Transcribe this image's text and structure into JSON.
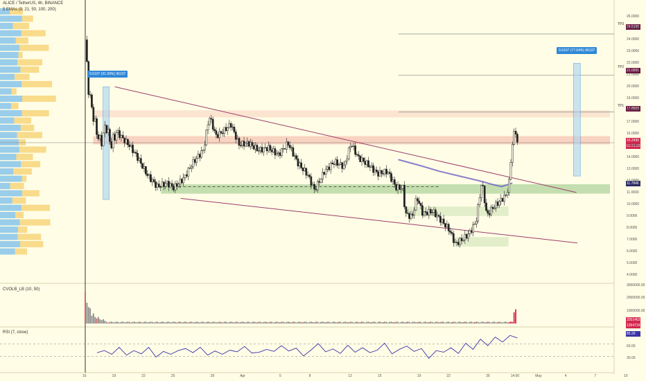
{
  "header": {
    "symbol": "ALICE / TetherUS, 4h, BINANCE",
    "emas": "5 EMAs (9, 21, 50, 100, 200)",
    "cvol": "CVOLB_LB (10, 50)",
    "rsi": "RSI (7, close)"
  },
  "colors": {
    "background": "#fffde6",
    "candle": "#222222",
    "trendline": "#9c3c6a",
    "ema": "#6b5fc4",
    "rsi": "#3c33a8",
    "resistance_zone": "#f4b8a8",
    "support_zone": "#9cc98a",
    "measure": "#2f88d8",
    "price_tag": "#d3274f"
  },
  "measures": [
    {
      "label": "9.6107 (91.99%) 96107",
      "from": 10.4,
      "to": 20.0
    },
    {
      "label": "9.6107 (77.64%) 96107",
      "from": 12.4,
      "to": 22.0
    }
  ],
  "tp_levels": [
    {
      "name": "TP3",
      "price_label": "24.5190"
    },
    {
      "name": "TP2",
      "price_label": "21.0201"
    },
    {
      "name": "TP1",
      "price_label": "17.8509"
    }
  ],
  "price_tags": [
    {
      "label": "15.2430",
      "sub": "02:20:20",
      "color": "#d3274f"
    },
    {
      "label": "11.7846",
      "color": "#2d2d66"
    }
  ],
  "cvol_tags": [
    "2051463.00",
    "1354719.00"
  ],
  "rsi_tag": "85.29",
  "chart_data": [
    {
      "type": "candlestick",
      "title": "ALICE / TetherUS, 4h, BINANCE",
      "ylim": [
        3.5,
        26.8
      ],
      "y_ticks": [
        "4.0000",
        "5.0000",
        "6.0000",
        "7.0000",
        "8.0000",
        "9.0000",
        "10.0000",
        "11.0000",
        "12.0000",
        "13.0000",
        "14.0000",
        "15.0000",
        "16.0000",
        "17.0000",
        "18.0000",
        "19.0000",
        "20.0000",
        "21.0000",
        "22.0000",
        "23.0000",
        "24.0000",
        "25.0000",
        "26.0000"
      ],
      "y_tick_values": [
        4,
        5,
        6,
        7,
        8,
        9,
        10,
        11,
        12,
        13,
        14,
        15,
        16,
        17,
        18,
        19,
        20,
        21,
        22,
        23,
        24,
        25,
        26
      ],
      "x_ticks": [
        "16",
        "19",
        "22",
        "25",
        "29",
        "Apr",
        "5",
        "8",
        "12",
        "15",
        "19",
        "22",
        "26",
        "14:00",
        "May",
        "4",
        "7",
        "10"
      ],
      "x_tick_days": [
        0,
        3,
        6,
        9,
        13,
        16,
        20,
        23,
        27,
        30,
        34,
        37,
        41,
        43.5,
        46,
        49,
        52,
        55
      ],
      "close_path": [
        [
          0,
          24
        ],
        [
          0.3,
          20
        ],
        [
          0.7,
          18
        ],
        [
          1.2,
          16
        ],
        [
          1.6,
          15.2
        ],
        [
          2.1,
          16.8
        ],
        [
          2.6,
          15
        ],
        [
          3.2,
          16.2
        ],
        [
          3.8,
          15.6
        ],
        [
          4.5,
          15
        ],
        [
          5.3,
          14
        ],
        [
          6.3,
          12.5
        ],
        [
          7.3,
          11.5
        ],
        [
          8.3,
          11.8
        ],
        [
          9,
          11.4
        ],
        [
          10,
          12.2
        ],
        [
          11,
          13.6
        ],
        [
          12,
          14.6
        ],
        [
          12.6,
          17.5
        ],
        [
          13.3,
          15.8
        ],
        [
          14,
          16.2
        ],
        [
          14.8,
          16.8
        ],
        [
          15.6,
          15.1
        ],
        [
          16.6,
          15.2
        ],
        [
          17.6,
          14.6
        ],
        [
          18.6,
          14.8
        ],
        [
          19.6,
          14.2
        ],
        [
          20.6,
          15.2
        ],
        [
          21.6,
          13.5
        ],
        [
          22.6,
          12.5
        ],
        [
          23.3,
          11.2
        ],
        [
          24.3,
          12.8
        ],
        [
          25.3,
          13.6
        ],
        [
          26.3,
          13.2
        ],
        [
          27,
          15.2
        ],
        [
          27.7,
          14
        ],
        [
          28.7,
          13.4
        ],
        [
          29.7,
          12.6
        ],
        [
          30.7,
          12.8
        ],
        [
          31.6,
          11.4
        ],
        [
          32.3,
          11.4
        ],
        [
          32.5,
          9.2
        ],
        [
          33.2,
          8.9
        ],
        [
          33.7,
          10.6
        ],
        [
          34.3,
          9.2
        ],
        [
          35.3,
          9.4
        ],
        [
          36.3,
          8.5
        ],
        [
          37,
          7.8
        ],
        [
          37.6,
          6.6
        ],
        [
          38.3,
          7
        ],
        [
          39,
          7.5
        ],
        [
          39.7,
          8.5
        ],
        [
          40.3,
          12
        ],
        [
          40.8,
          9
        ],
        [
          41.3,
          9.6
        ],
        [
          42.3,
          10.4
        ],
        [
          42.8,
          10.8
        ],
        [
          43.1,
          12
        ],
        [
          43.3,
          14.5
        ],
        [
          43.5,
          15.8
        ],
        [
          43.7,
          16.4
        ],
        [
          43.9,
          15.2
        ]
      ],
      "volume_spikes": [
        [
          0,
          2450000
        ],
        [
          0.4,
          1500000
        ],
        [
          0.8,
          850000
        ],
        [
          1.3,
          550000
        ],
        [
          1.8,
          360000
        ],
        [
          43.7,
          1200000
        ]
      ],
      "zones": [
        {
          "kind": "resistance",
          "from": 17.4,
          "to": 18.0
        },
        {
          "kind": "resistance",
          "from": 15.1,
          "to": 15.8
        },
        {
          "kind": "support",
          "from": 10.9,
          "to": 11.7
        }
      ]
    },
    {
      "type": "line",
      "title": "CVOLB_LB (10, 50)",
      "y_ticks": [
        "3000000.00",
        "2000000.00",
        "1000000.00"
      ],
      "y_tick_values": [
        3000000,
        2000000,
        1000000
      ]
    },
    {
      "type": "line",
      "title": "RSI (7, close)",
      "y_ticks": [
        "60.00",
        "30.00"
      ],
      "y_tick_values": [
        60,
        30
      ],
      "values": [
        44,
        49,
        40,
        57,
        38,
        49,
        41,
        57,
        33,
        47,
        40,
        49,
        54,
        44,
        57,
        38,
        48,
        40,
        50,
        46,
        59,
        43,
        45,
        52,
        47,
        61,
        48,
        55,
        36,
        50,
        66,
        46,
        53,
        42,
        62,
        45,
        56,
        44,
        50,
        67,
        41,
        52,
        60,
        47,
        54,
        30,
        49,
        45,
        56,
        42,
        67,
        52,
        77,
        61,
        82,
        70,
        86,
        80
      ]
    }
  ]
}
